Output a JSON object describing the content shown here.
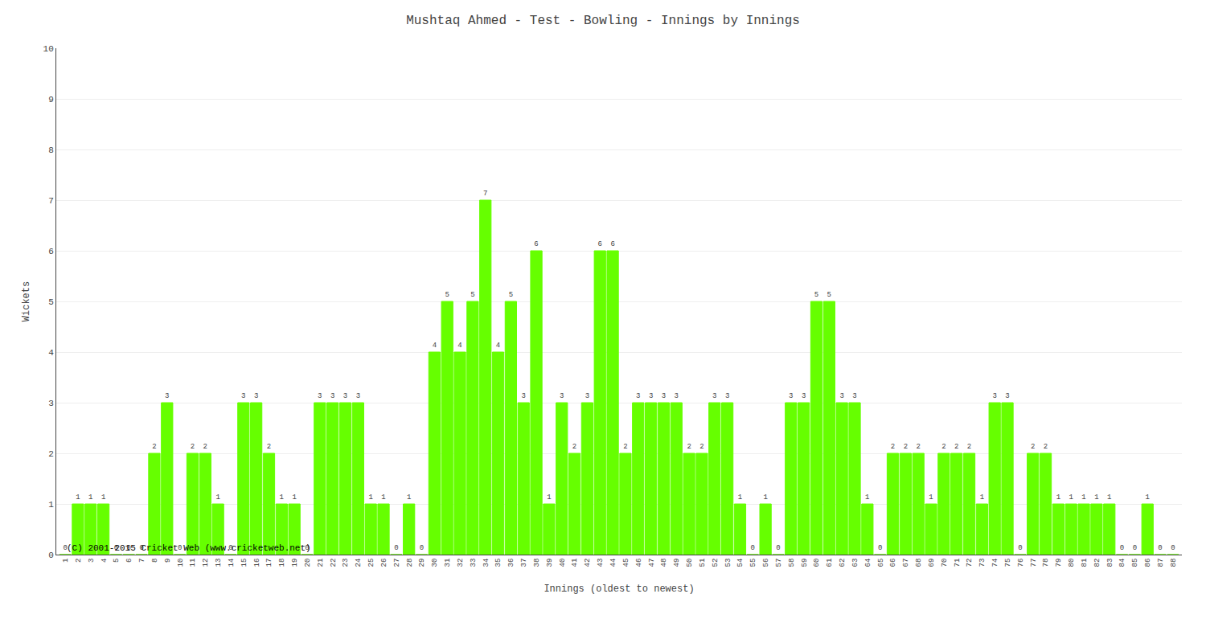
{
  "chart_data": {
    "type": "bar",
    "title": "Mushtaq Ahmed - Test - Bowling - Innings by Innings",
    "xlabel": "Innings (oldest to newest)",
    "ylabel": "Wickets",
    "categories": [
      "1",
      "2",
      "3",
      "4",
      "5",
      "6",
      "7",
      "8",
      "9",
      "10",
      "11",
      "12",
      "13",
      "14",
      "15",
      "16",
      "17",
      "18",
      "19",
      "20",
      "21",
      "22",
      "23",
      "24",
      "25",
      "26",
      "27",
      "28",
      "29",
      "30",
      "31",
      "32",
      "33",
      "34",
      "35",
      "36",
      "37",
      "38",
      "39",
      "40",
      "41",
      "42",
      "43",
      "44",
      "45",
      "46",
      "47",
      "48",
      "49",
      "50",
      "51",
      "52",
      "53",
      "54",
      "55",
      "56",
      "57",
      "58",
      "59",
      "60",
      "61",
      "62",
      "63",
      "64",
      "65",
      "66",
      "67",
      "68",
      "69",
      "70",
      "71",
      "72",
      "73",
      "74",
      "75",
      "76",
      "77",
      "78",
      "79",
      "80",
      "81",
      "82",
      "83",
      "84",
      "85",
      "86",
      "87",
      "88"
    ],
    "values": [
      0,
      1,
      1,
      1,
      0,
      0,
      0,
      2,
      3,
      0,
      2,
      2,
      1,
      0,
      3,
      3,
      2,
      1,
      1,
      0,
      3,
      3,
      3,
      3,
      1,
      1,
      0,
      1,
      0,
      4,
      5,
      4,
      5,
      7,
      4,
      5,
      3,
      6,
      1,
      3,
      2,
      3,
      6,
      6,
      2,
      3,
      3,
      3,
      3,
      2,
      2,
      3,
      3,
      1,
      0,
      1,
      0,
      3,
      3,
      5,
      5,
      3,
      3,
      1,
      0,
      2,
      2,
      2,
      1,
      2,
      2,
      2,
      1,
      3,
      3,
      0,
      2,
      2,
      1,
      1,
      1,
      1,
      1,
      0,
      0,
      1,
      0,
      0
    ],
    "color": "#66ff00",
    "ylim": [
      0,
      10
    ],
    "yticks": [
      0,
      1,
      2,
      3,
      4,
      5,
      6,
      7,
      8,
      9,
      10
    ],
    "grid": true,
    "data_labels": true,
    "annotations": [
      "(C) 2001-2015 Cricket Web (www.cricketweb.net)"
    ]
  }
}
